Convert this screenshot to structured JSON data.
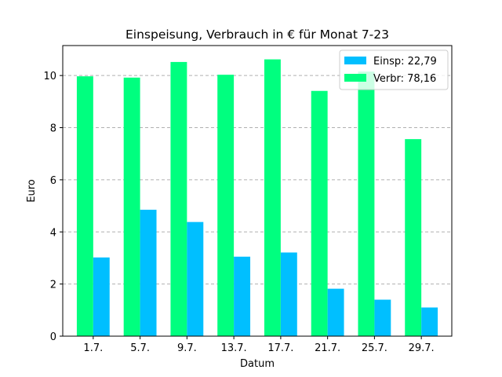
{
  "chart_data": {
    "type": "bar",
    "title": "Einspeisung, Verbrauch in € für Monat 7-23",
    "xlabel": "Datum",
    "ylabel": "Euro",
    "categories": [
      "1.7.",
      "5.7.",
      "9.7.",
      "13.7.",
      "17.7.",
      "21.7.",
      "25.7.",
      "29.7."
    ],
    "series": [
      {
        "name": "Verbr: 78,16",
        "color": "#00ff7f",
        "values": [
          9.97,
          9.92,
          10.52,
          10.03,
          10.62,
          9.41,
          10.15,
          7.56
        ]
      },
      {
        "name": "Einsp: 22,79",
        "color": "#00bfff",
        "values": [
          3.02,
          4.85,
          4.38,
          3.05,
          3.21,
          1.82,
          1.4,
          1.1
        ]
      }
    ],
    "ylim": [
      0,
      11.15
    ],
    "yticks": [
      0,
      2,
      4,
      6,
      8,
      10
    ],
    "grid": "y-dashed",
    "legend_position": "top-right",
    "legend_order": [
      1,
      0
    ]
  }
}
